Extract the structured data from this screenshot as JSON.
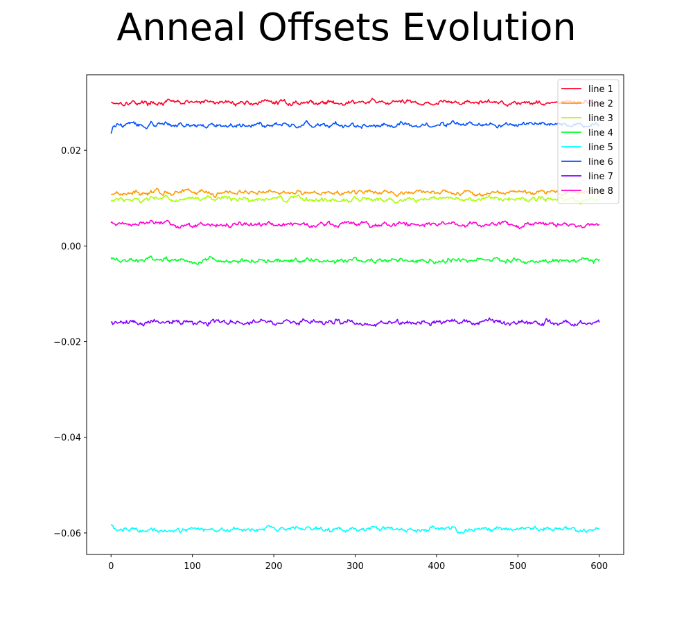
{
  "chart_data": {
    "type": "line",
    "title": "Anneal Offsets Evolution",
    "xlabel": "",
    "ylabel": "",
    "xlim": [
      -30,
      630
    ],
    "ylim": [
      -0.0645,
      0.0358
    ],
    "x_ticks": [
      0,
      100,
      200,
      300,
      400,
      500,
      600
    ],
    "x_tick_labels": [
      "0",
      "100",
      "200",
      "300",
      "400",
      "500",
      "600"
    ],
    "y_ticks": [
      0.02,
      0.0,
      -0.02,
      -0.04,
      -0.06
    ],
    "y_tick_labels": [
      "0.02",
      "0.00",
      "−0.02",
      "−0.04",
      "−0.06"
    ],
    "grid": false,
    "legend_position": "top-right",
    "series_params": {
      "x_start": 0,
      "x_end": 600,
      "x_step": 1
    },
    "series": [
      {
        "name": "line 1",
        "color": "#ff0029",
        "start": 0.03,
        "mean": 0.03,
        "noise": 0.0003
      },
      {
        "name": "line 2",
        "color": "#ff9900",
        "start": 0.0108,
        "mean": 0.0112,
        "noise": 0.0003
      },
      {
        "name": "line 3",
        "color": "#a9ff00",
        "start": 0.0093,
        "mean": 0.0098,
        "noise": 0.0003
      },
      {
        "name": "line 4",
        "color": "#00ff29",
        "start": -0.0024,
        "mean": -0.003,
        "noise": 0.0003
      },
      {
        "name": "line 5",
        "color": "#00ffff",
        "start": -0.0582,
        "mean": -0.0592,
        "noise": 0.0003
      },
      {
        "name": "line 6",
        "color": "#0050ff",
        "start": 0.0235,
        "mean": 0.0253,
        "noise": 0.0003
      },
      {
        "name": "line 7",
        "color": "#7f00ff",
        "start": -0.016,
        "mean": -0.016,
        "noise": 0.00035
      },
      {
        "name": "line 8",
        "color": "#ff00d4",
        "start": 0.0048,
        "mean": 0.0045,
        "noise": 0.0003
      }
    ]
  }
}
